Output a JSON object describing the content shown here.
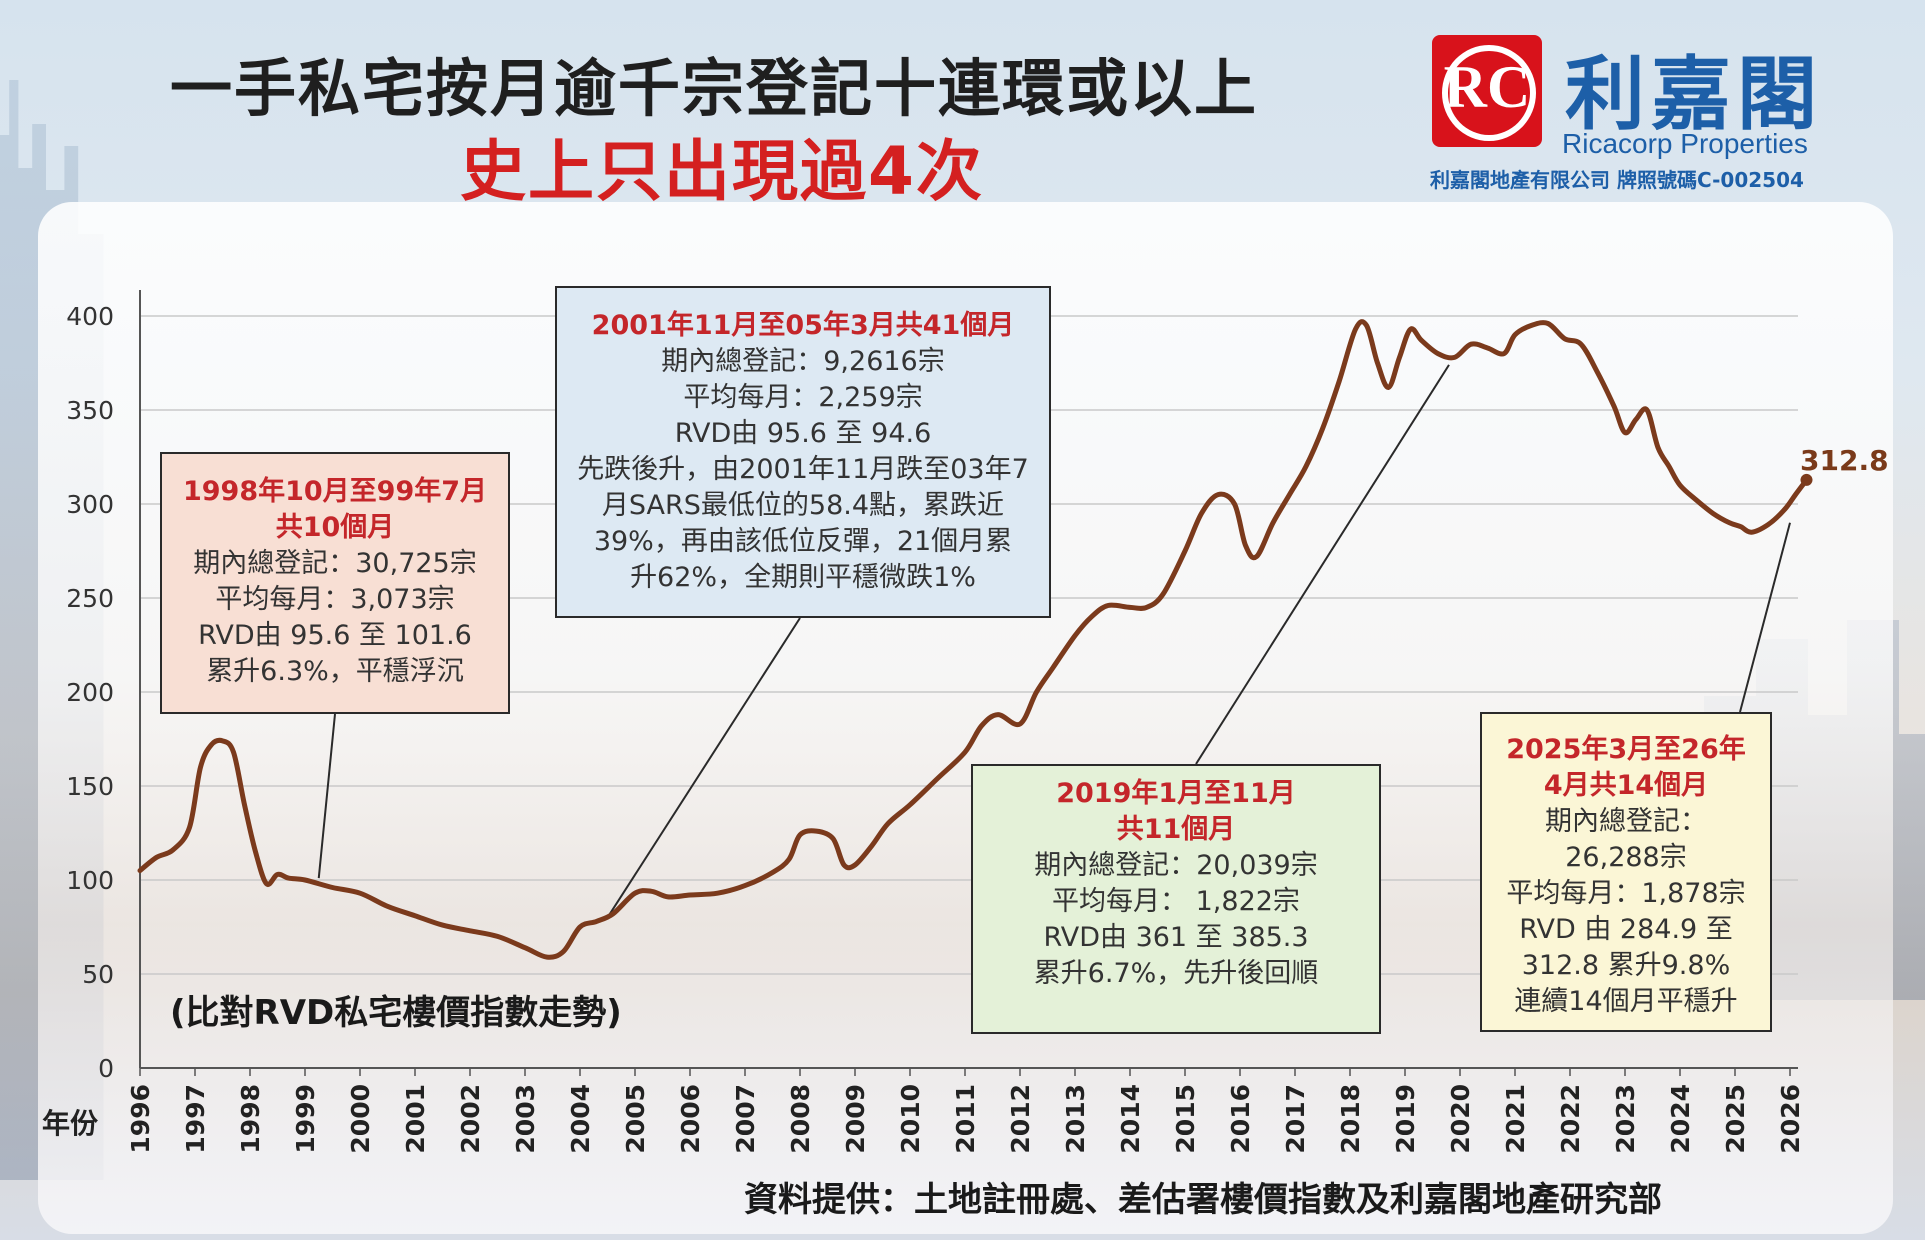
{
  "title": {
    "line1": "一手私宅按月逾千宗登記十連環或以上",
    "line2": "史上只出現過4次"
  },
  "brand": {
    "logo_letters": "RC",
    "name_cn": "利嘉閣",
    "name_en": "Ricacorp Properties",
    "license": "利嘉閣地產有限公司 牌照號碼C-002504",
    "logo_color": "#d8121b",
    "brand_color": "#1d5fa8"
  },
  "chart_data": {
    "type": "line",
    "title": "一手私宅按月逾千宗登記十連環或以上",
    "xlabel": "年份",
    "ylabel": "",
    "ylim": [
      0,
      400
    ],
    "yticks": [
      "0",
      "50",
      "100",
      "150",
      "200",
      "250",
      "300",
      "350",
      "400"
    ],
    "xticks": [
      "1996",
      "1997",
      "1998",
      "1999",
      "2000",
      "2001",
      "2002",
      "2003",
      "2004",
      "2005",
      "2006",
      "2007",
      "2008",
      "2009",
      "2010",
      "2011",
      "2012",
      "2013",
      "2014",
      "2015",
      "2016",
      "2017",
      "2018",
      "2019",
      "2020",
      "2021",
      "2022",
      "2023",
      "2024",
      "2025",
      "2026"
    ],
    "grid": true,
    "line_color": "#7b3a1c",
    "series": [
      {
        "name": "",
        "x": [
          1996.0,
          1996.3,
          1996.6,
          1996.9,
          1997.1,
          1997.3,
          1997.5,
          1997.7,
          1997.9,
          1998.1,
          1998.3,
          1998.5,
          1998.7,
          1999.0,
          1999.5,
          2000.0,
          2000.5,
          2001.0,
          2001.5,
          2002.0,
          2002.5,
          2003.0,
          2003.4,
          2003.7,
          2004.0,
          2004.3,
          2004.6,
          2005.0,
          2005.3,
          2005.6,
          2006.0,
          2006.5,
          2007.0,
          2007.5,
          2007.8,
          2008.0,
          2008.3,
          2008.6,
          2008.8,
          2009.0,
          2009.3,
          2009.6,
          2010.0,
          2010.5,
          2011.0,
          2011.3,
          2011.6,
          2012.0,
          2012.3,
          2012.6,
          2013.0,
          2013.3,
          2013.6,
          2014.0,
          2014.3,
          2014.6,
          2015.0,
          2015.3,
          2015.6,
          2015.9,
          2016.1,
          2016.3,
          2016.6,
          2016.9,
          2017.2,
          2017.5,
          2017.8,
          2018.1,
          2018.3,
          2018.5,
          2018.7,
          2018.9,
          2019.1,
          2019.3,
          2019.6,
          2019.9,
          2020.2,
          2020.5,
          2020.8,
          2021.0,
          2021.3,
          2021.6,
          2021.9,
          2022.2,
          2022.5,
          2022.8,
          2023.0,
          2023.2,
          2023.4,
          2023.6,
          2023.8,
          2024.0,
          2024.3,
          2024.6,
          2024.9,
          2025.1,
          2025.3,
          2025.6,
          2025.9,
          2026.1,
          2026.3
        ],
        "values": [
          105,
          112,
          116,
          128,
          160,
          172,
          174,
          168,
          140,
          115,
          98,
          103,
          101,
          100,
          96,
          93,
          86,
          81,
          76,
          73,
          70,
          64,
          59,
          62,
          75,
          78,
          82,
          93,
          94,
          91,
          92,
          93,
          97,
          104,
          111,
          124,
          126,
          122,
          108,
          108,
          118,
          130,
          140,
          154,
          168,
          182,
          188,
          183,
          200,
          213,
          230,
          240,
          246,
          245,
          245,
          252,
          275,
          295,
          305,
          300,
          278,
          272,
          290,
          305,
          320,
          340,
          365,
          393,
          395,
          375,
          362,
          378,
          393,
          387,
          380,
          378,
          385,
          383,
          380,
          390,
          395,
          396,
          388,
          385,
          370,
          352,
          338,
          345,
          350,
          330,
          320,
          310,
          302,
          295,
          290,
          288,
          285,
          289,
          297,
          305,
          312.8
        ]
      }
    ],
    "annotations": [
      {
        "period": "1998年10月至99年7月共10個月",
        "header": [
          "1998年10月至99年7月",
          "共10個月"
        ],
        "lines": [
          "期內總登記：30,725宗",
          "平均每月：3,073宗",
          "RVD由 95.6 至 101.6",
          "累升6.3%，平穩浮沉"
        ],
        "bg": "#f8dfd4"
      },
      {
        "period": "2001年11月至05年3月共41個月",
        "header": [
          "2001年11月至05年3月共41個月"
        ],
        "lines": [
          "期內總登記：9,2616宗",
          "平均每月：2,259宗",
          "RVD由 95.6 至 94.6",
          "先跌後升，由2001年11月跌至03年7",
          "月SARS最低位的58.4點，累跌近",
          "39%，再由該低位反彈，21個月累",
          "升62%，全期則平穩微跌1%"
        ],
        "bg": "#dde9f3"
      },
      {
        "period": "2019年1月至11月共11個月",
        "header": [
          "2019年1月至11月",
          "共11個月"
        ],
        "lines": [
          "期內總登記：20,039宗",
          "平均每月： 1,822宗",
          "RVD由 361 至 385.3",
          "累升6.7%，先升後回順"
        ],
        "bg": "#e4f1d8"
      },
      {
        "period": "2025年3月至26年4月共14個月",
        "header": [
          "2025年3月至26年",
          "4月共14個月"
        ],
        "lines": [
          "期內總登記：",
          "26,288宗",
          "平均每月：1,878宗",
          "RVD 由 284.9 至",
          "312.8 累升9.8%",
          "連續14個月平穩升"
        ],
        "bg": "#fbf6d6"
      }
    ],
    "end_value_label": "312.8",
    "note": "(比對RVD私宅樓價指數走勢)"
  },
  "source": "資料提供：土地註冊處、差估署樓價指數及利嘉閣地產研究部"
}
